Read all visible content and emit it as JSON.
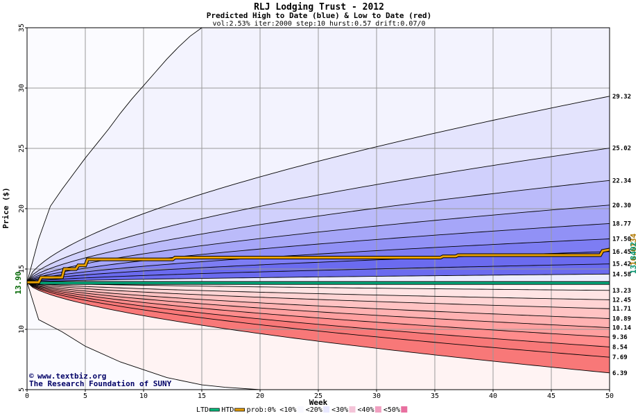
{
  "chart_data": {
    "type": "area",
    "title": "RLJ Lodging Trust - 2012",
    "subtitle": "Predicted High to Date (blue) &  Low to Date (red)",
    "params": "vol:2.53% iter:2000 step:10 hurst:0.57 drift:0.07/0",
    "xlabel": "Week",
    "ylabel": "Price ($)",
    "xlim": [
      0,
      50
    ],
    "ylim": [
      5,
      35
    ],
    "x_ticks": [
      "0",
      "5",
      "10",
      "15",
      "20",
      "25",
      "30",
      "35",
      "40",
      "45",
      "50"
    ],
    "y_ticks": [
      "5",
      "10",
      "15",
      "20",
      "25",
      "30",
      "35"
    ],
    "grid": true,
    "start_price": 13.9,
    "start_label": "13.90",
    "high_end_labels": [
      "29.32",
      "25.02",
      "22.34",
      "20.30",
      "18.77",
      "17.50",
      "16.45",
      "15.42",
      "14.58"
    ],
    "low_end_labels": [
      "13.23",
      "12.45",
      "11.71",
      "10.89",
      "10.14",
      "9.36",
      "8.54",
      "7.69",
      "6.39"
    ],
    "extreme_high": {
      "x": [
        0,
        1,
        2,
        3,
        4,
        5,
        6,
        7,
        8,
        9,
        10,
        11,
        12,
        13,
        14,
        15
      ],
      "y": [
        13.9,
        17.5,
        20.2,
        21.6,
        22.9,
        24.2,
        25.4,
        26.6,
        27.9,
        29.1,
        30.2,
        31.3,
        32.4,
        33.4,
        34.3,
        35
      ]
    },
    "extreme_low": {
      "x": [
        0,
        1,
        3,
        5,
        8,
        12,
        15,
        17,
        20
      ],
      "y": [
        13.9,
        10.8,
        9.8,
        8.6,
        7.3,
        6.0,
        5.4,
        5.2,
        5.0
      ]
    },
    "htd_line": {
      "name": "HTD",
      "color": "#e8a000",
      "x": [
        0,
        1,
        1.2,
        3,
        3.2,
        4.2,
        4.4,
        5,
        5.2,
        12.5,
        12.7,
        35.5,
        35.7,
        36.8,
        37,
        49.2,
        49.4,
        50
      ],
      "y": [
        13.9,
        13.9,
        14.3,
        14.3,
        15.0,
        15.0,
        15.3,
        15.3,
        15.8,
        15.8,
        15.95,
        15.95,
        16.05,
        16.05,
        16.15,
        16.15,
        16.5,
        16.61
      ]
    },
    "htd_label": "16.6134",
    "ltd_line": {
      "name": "LTD",
      "color": "#00b080",
      "x": [
        0,
        1,
        50
      ],
      "y": [
        13.9,
        13.84,
        13.84
      ]
    },
    "ltd_label": "13.8402",
    "legend": [
      {
        "label": "LTD",
        "color": "#00c080"
      },
      {
        "label": "HTD",
        "color": "#e8a000"
      },
      {
        "label": "prob:0%",
        "color": ""
      },
      {
        "label": "<10%",
        "color": "#f8f8ff"
      },
      {
        "label": "<20%",
        "color": "#e8e8ff"
      },
      {
        "label": "<30%",
        "color": "#f4c4d8"
      },
      {
        "label": "<40%",
        "color": "#f0a0c0"
      },
      {
        "label": "<50%",
        "color": "#e870a0"
      }
    ],
    "credit_1": "www.textbiz.org",
    "credit_2": "The Research Foundation of SUNY"
  },
  "colors": {
    "blue_bands": [
      "#f3f3fe",
      "#e4e4fd",
      "#d0d0fc",
      "#bbbbfa",
      "#a6a6f8",
      "#9191f6",
      "#7d7df3",
      "#6b6bef"
    ],
    "red_bands": [
      "#fff3f3",
      "#ffe4e4",
      "#ffd4d4",
      "#ffc3c3",
      "#ffb2b2",
      "#ffa0a0",
      "#ff8c8c",
      "#f87878"
    ],
    "grid": "#999999"
  }
}
